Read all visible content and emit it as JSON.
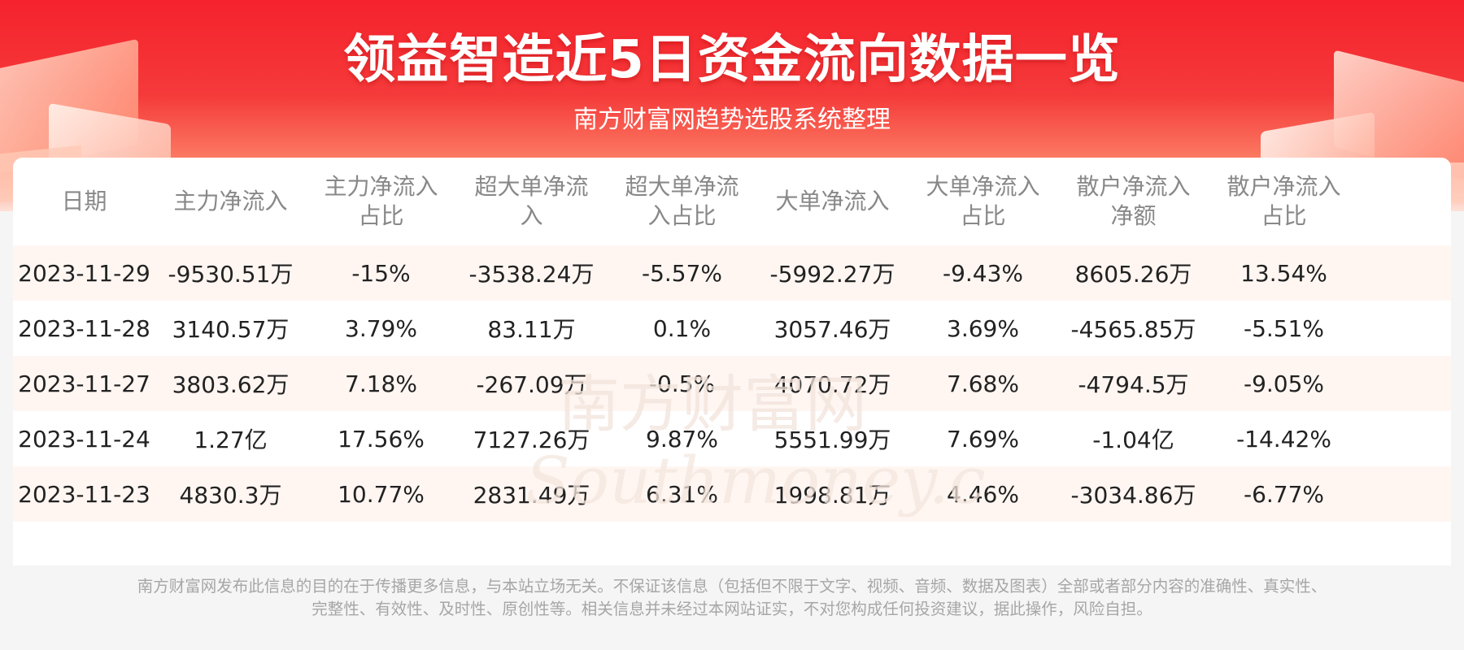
{
  "header": {
    "title": "领益智造近5日资金流向数据一览",
    "subtitle": "南方财富网趋势选股系统整理"
  },
  "colors": {
    "banner_red": "#f5222d",
    "row_alt": "#fff6f2",
    "header_text": "#888888",
    "cell_text": "#222222"
  },
  "chart_data": {
    "type": "table",
    "columns": [
      "日期",
      "主力净流入",
      "主力净流入占比",
      "超大单净流入",
      "超大单净流入占比",
      "大单净流入",
      "大单净流入占比",
      "散户净流入净额",
      "散户净流入占比"
    ],
    "column_lines": [
      [
        "日期"
      ],
      [
        "主力净流入"
      ],
      [
        "主力净流入",
        "占比"
      ],
      [
        "超大单净流",
        "入"
      ],
      [
        "超大单净流",
        "入占比"
      ],
      [
        "大单净流入"
      ],
      [
        "大单净流入",
        "占比"
      ],
      [
        "散户净流入",
        "净额"
      ],
      [
        "散户净流入",
        "占比"
      ]
    ],
    "rows": [
      [
        "2023-11-29",
        "-9530.51万",
        "-15%",
        "-3538.24万",
        "-5.57%",
        "-5992.27万",
        "-9.43%",
        "8605.26万",
        "13.54%"
      ],
      [
        "2023-11-28",
        "3140.57万",
        "3.79%",
        "83.11万",
        "0.1%",
        "3057.46万",
        "3.69%",
        "-4565.85万",
        "-5.51%"
      ],
      [
        "2023-11-27",
        "3803.62万",
        "7.18%",
        "-267.09万",
        "-0.5%",
        "4070.72万",
        "7.68%",
        "-4794.5万",
        "-9.05%"
      ],
      [
        "2023-11-24",
        "1.27亿",
        "17.56%",
        "7127.26万",
        "9.87%",
        "5551.99万",
        "7.69%",
        "-1.04亿",
        "-14.42%"
      ],
      [
        "2023-11-23",
        "4830.3万",
        "10.77%",
        "2831.49万",
        "6.31%",
        "1998.81万",
        "4.46%",
        "-3034.86万",
        "-6.77%"
      ]
    ]
  },
  "watermark": {
    "cn": "南方财富网",
    "en": "Southmoney.com"
  },
  "footer": {
    "line1": "南方财富网发布此信息的目的在于传播更多信息，与本站立场无关。不保证该信息（包括但不限于文字、视频、音频、数据及图表）全部或者部分内容的准确性、真实性、",
    "line2": "完整性、有效性、及时性、原创性等。相关信息并未经过本网站证实，不对您构成任何投资建议，据此操作，风险自担。"
  }
}
